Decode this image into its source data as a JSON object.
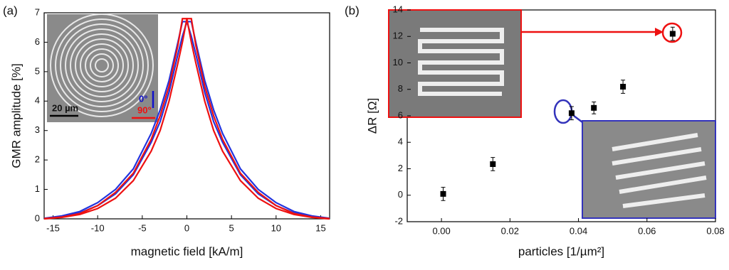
{
  "chart_data": [
    {
      "type": "line",
      "panel_label": "(a)",
      "x_label": "magnetic field [kA/m]",
      "y_label": "GMR amplitude [%]",
      "annotations": [
        "0°",
        "90°",
        "20 µm"
      ],
      "x": [
        -16,
        -14,
        -12,
        -10,
        -8,
        -6,
        -4,
        -3,
        -2,
        -1,
        -0.5,
        0,
        0.5,
        1,
        2,
        3,
        4,
        6,
        8,
        10,
        12,
        14,
        16
      ],
      "series": [
        {
          "color": "#2233dd",
          "values": [
            0.02,
            0.1,
            0.25,
            0.55,
            1.0,
            1.7,
            2.9,
            3.7,
            4.7,
            6.0,
            6.7,
            6.7,
            6.2,
            5.6,
            4.3,
            3.3,
            2.6,
            1.5,
            0.85,
            0.45,
            0.2,
            0.08,
            0.01
          ]
        },
        {
          "color": "#2233dd",
          "values": [
            0.01,
            0.08,
            0.2,
            0.45,
            0.85,
            1.5,
            2.6,
            3.3,
            4.3,
            5.6,
            6.2,
            6.7,
            6.7,
            6.0,
            4.7,
            3.7,
            2.9,
            1.7,
            1.0,
            0.55,
            0.25,
            0.1,
            0.02
          ]
        },
        {
          "color": "#ee1111",
          "values": [
            0.01,
            0.06,
            0.18,
            0.45,
            0.9,
            1.55,
            2.7,
            3.5,
            4.5,
            5.9,
            6.8,
            6.8,
            6.0,
            5.3,
            4.0,
            3.0,
            2.3,
            1.3,
            0.7,
            0.35,
            0.15,
            0.05,
            0.0
          ]
        },
        {
          "color": "#ee1111",
          "values": [
            0.0,
            0.05,
            0.15,
            0.35,
            0.7,
            1.3,
            2.3,
            3.0,
            4.0,
            5.3,
            6.0,
            6.8,
            6.8,
            5.9,
            4.5,
            3.5,
            2.7,
            1.55,
            0.9,
            0.45,
            0.18,
            0.06,
            0.01
          ]
        }
      ],
      "xlim": [
        -16,
        16
      ],
      "xticks": [
        -15,
        -10,
        -5,
        0,
        5,
        10,
        15
      ],
      "ylim": [
        0,
        7
      ],
      "yticks": [
        0,
        1,
        2,
        3,
        4,
        5,
        6,
        7
      ]
    },
    {
      "type": "scatter",
      "panel_label": "(b)",
      "x_label": "particles [1/µm²]",
      "y_label": "ΔR [Ω]",
      "x": [
        0.0005,
        0.015,
        0.038,
        0.0445,
        0.053,
        0.0675
      ],
      "values": [
        0.1,
        2.35,
        6.2,
        6.6,
        8.2,
        12.2
      ],
      "errors": [
        0.5,
        0.5,
        0.5,
        0.45,
        0.5,
        0.5
      ],
      "color": "#000000",
      "xlim": [
        -0.01,
        0.08
      ],
      "xticks": [
        {
          "value": 0,
          "label": "0.00"
        },
        0.02,
        0.04,
        0.06,
        0.08
      ],
      "ylim": [
        -2,
        14
      ],
      "yticks": [
        -2,
        0,
        2,
        4,
        6,
        8,
        10,
        12,
        14
      ]
    }
  ]
}
